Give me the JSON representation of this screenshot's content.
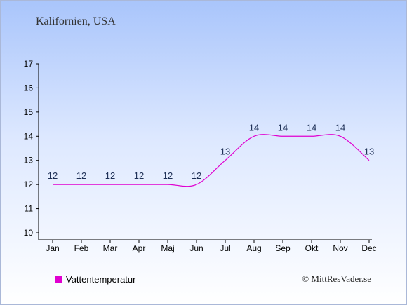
{
  "chart_data": {
    "type": "line",
    "title": "Kalifornien, USA",
    "categories": [
      "Jan",
      "Feb",
      "Mar",
      "Apr",
      "Maj",
      "Jun",
      "Jul",
      "Aug",
      "Sep",
      "Okt",
      "Nov",
      "Dec"
    ],
    "series": [
      {
        "name": "Vattentemperatur",
        "values": [
          12,
          12,
          12,
          12,
          12,
          12,
          13,
          14,
          14,
          14,
          14,
          13
        ],
        "color": "#e000d0"
      }
    ],
    "ylim": [
      10,
      17
    ],
    "yticks": [
      10,
      11,
      12,
      13,
      14,
      15,
      16,
      17
    ],
    "grid": false,
    "legend_position": "bottom-left"
  },
  "credit": "© MittResVader.se"
}
